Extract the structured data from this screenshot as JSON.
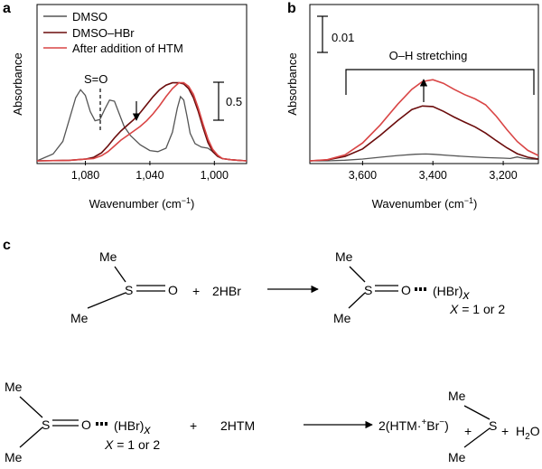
{
  "panels": {
    "a": "a",
    "b": "b",
    "c": "c"
  },
  "chart_data": [
    {
      "type": "line",
      "panel": "a",
      "xlabel": "Wavenumber (cm−1)",
      "ylabel": "Absorbance",
      "xlim": [
        1110,
        980
      ],
      "xaxis_reversed": true,
      "xticks": [
        1080,
        1040,
        1000
      ],
      "xtick_labels": [
        "1,080",
        "1,040",
        "1,000"
      ],
      "grid": false,
      "legend_position": "top-left",
      "scale_bar_label": "0.5",
      "peak_label": "S=O",
      "series": [
        {
          "name": "DMSO",
          "color": "#555555",
          "x": [
            1110,
            1100,
            1094,
            1090,
            1086,
            1083,
            1080,
            1077,
            1074,
            1071,
            1068,
            1065,
            1062,
            1059,
            1056,
            1052,
            1046,
            1040,
            1035,
            1030,
            1026,
            1023,
            1021,
            1019,
            1017,
            1015,
            1012,
            1008,
            1004,
            1001,
            998,
            995,
            990,
            985,
            980
          ],
          "y": [
            0.0,
            0.06,
            0.17,
            0.36,
            0.55,
            0.62,
            0.57,
            0.43,
            0.35,
            0.36,
            0.45,
            0.53,
            0.52,
            0.41,
            0.3,
            0.22,
            0.14,
            0.09,
            0.08,
            0.11,
            0.25,
            0.46,
            0.56,
            0.53,
            0.39,
            0.24,
            0.15,
            0.12,
            0.11,
            0.08,
            0.04,
            0.02,
            0.01,
            0.005,
            0.0
          ]
        },
        {
          "name": "DMSO–HBr",
          "color": "#6b0c0c",
          "x": [
            1110,
            1090,
            1080,
            1075,
            1070,
            1066,
            1062,
            1058,
            1054,
            1050,
            1046,
            1042,
            1038,
            1034,
            1030,
            1026,
            1022,
            1019,
            1016,
            1013,
            1010,
            1007,
            1004,
            1001,
            998,
            995,
            990,
            985,
            980
          ],
          "y": [
            0.0,
            0.005,
            0.015,
            0.03,
            0.07,
            0.13,
            0.2,
            0.26,
            0.31,
            0.36,
            0.42,
            0.49,
            0.56,
            0.62,
            0.66,
            0.68,
            0.68,
            0.67,
            0.63,
            0.55,
            0.43,
            0.29,
            0.16,
            0.08,
            0.04,
            0.02,
            0.01,
            0.005,
            0.0
          ]
        },
        {
          "name": "After addition of HTM",
          "color": "#d94545",
          "x": [
            1110,
            1090,
            1080,
            1075,
            1070,
            1066,
            1062,
            1058,
            1054,
            1050,
            1046,
            1042,
            1038,
            1034,
            1030,
            1026,
            1022,
            1019,
            1016,
            1013,
            1010,
            1007,
            1004,
            1001,
            998,
            995,
            990,
            985,
            980
          ],
          "y": [
            0.0,
            0.005,
            0.015,
            0.02,
            0.045,
            0.08,
            0.13,
            0.18,
            0.22,
            0.26,
            0.3,
            0.35,
            0.41,
            0.48,
            0.56,
            0.63,
            0.68,
            0.68,
            0.65,
            0.58,
            0.46,
            0.32,
            0.19,
            0.1,
            0.05,
            0.02,
            0.01,
            0.005,
            0.0
          ]
        }
      ]
    },
    {
      "type": "line",
      "panel": "b",
      "xlabel": "Wavenumber (cm−1)",
      "ylabel": "Absorbance",
      "xlim": [
        3750,
        3100
      ],
      "xaxis_reversed": true,
      "xticks": [
        3600,
        3400,
        3200
      ],
      "xtick_labels": [
        "3,600",
        "3,400",
        "3,200"
      ],
      "grid": false,
      "scale_bar_label": "0.01",
      "bracket_label": "O–H stretching",
      "series": [
        {
          "name": "DMSO",
          "color": "#555555",
          "x": [
            3750,
            3700,
            3650,
            3600,
            3550,
            3500,
            3450,
            3420,
            3400,
            3350,
            3300,
            3250,
            3200,
            3180,
            3160,
            3140,
            3120,
            3100
          ],
          "y": [
            0.0,
            0.0,
            0.0002,
            0.0006,
            0.0012,
            0.0018,
            0.0022,
            0.0023,
            0.0022,
            0.0018,
            0.0014,
            0.0011,
            0.0009,
            0.0008,
            0.0013,
            0.0008,
            0.0006,
            0.0005
          ]
        },
        {
          "name": "DMSO–HBr",
          "color": "#6b0c0c",
          "x": [
            3750,
            3700,
            3650,
            3600,
            3550,
            3500,
            3460,
            3430,
            3400,
            3370,
            3340,
            3310,
            3280,
            3250,
            3220,
            3190,
            3160,
            3130,
            3100
          ],
          "y": [
            0.0,
            0.0003,
            0.0015,
            0.004,
            0.0085,
            0.0135,
            0.0172,
            0.0184,
            0.0182,
            0.0166,
            0.0147,
            0.013,
            0.0114,
            0.0093,
            0.0068,
            0.0044,
            0.0024,
            0.0012,
            0.0006
          ]
        },
        {
          "name": "After addition of HTM",
          "color": "#d94545",
          "x": [
            3750,
            3700,
            3650,
            3600,
            3550,
            3500,
            3460,
            3430,
            3400,
            3370,
            3340,
            3310,
            3280,
            3250,
            3220,
            3190,
            3160,
            3130,
            3100
          ],
          "y": [
            0.0,
            0.0004,
            0.002,
            0.006,
            0.012,
            0.019,
            0.024,
            0.0266,
            0.0272,
            0.026,
            0.024,
            0.0222,
            0.0208,
            0.0188,
            0.015,
            0.0105,
            0.0065,
            0.0035,
            0.0018
          ]
        }
      ]
    }
  ],
  "scheme": {
    "me": "Me",
    "s": "S",
    "o": "O",
    "plus": "+",
    "hbr2": "2HBr",
    "hbrx": "(HBr)",
    "x_sub": "x",
    "x_eq_prefix": "X",
    "x_eq_suffix": " = 1 or 2",
    "htm2": "2HTM",
    "prod_2": "2(HTM·",
    "prod_plus_sup": "+",
    "prod_br": "Br",
    "prod_minus_sup": "−",
    "prod_close": ")",
    "h": "H",
    "two": "2"
  }
}
